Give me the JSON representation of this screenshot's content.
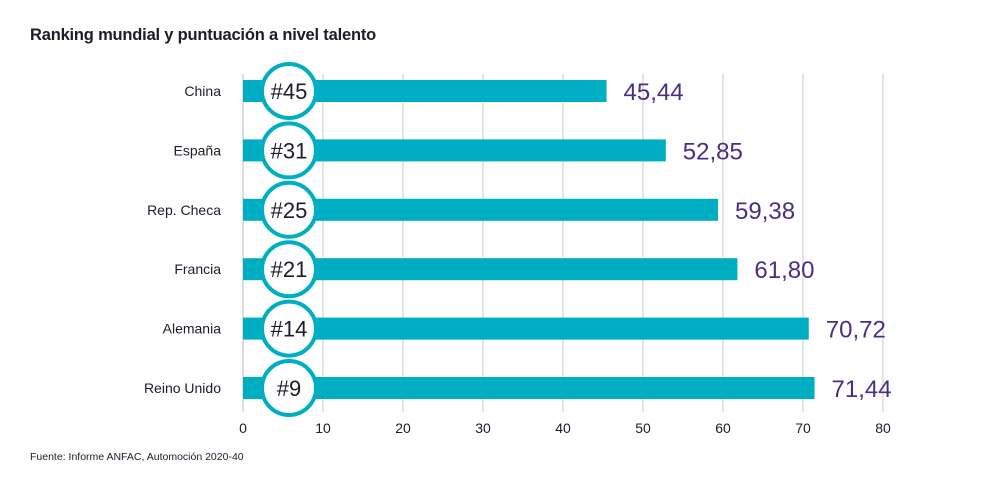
{
  "title": "Ranking mundial y puntuación a nivel talento",
  "source": "Fuente: Informe ANFAC, Automoción 2020-40",
  "colors": {
    "bar": "#00aec3",
    "value": "#4b2e83",
    "grid": "#c8c8c8",
    "text": "#1c1c2a"
  },
  "chart_data": {
    "type": "bar",
    "orientation": "horizontal",
    "title": "Ranking mundial y puntuación a nivel talento",
    "categories": [
      "China",
      "España",
      "Rep. Checa",
      "Francia",
      "Alemania",
      "Reino Unido"
    ],
    "values": [
      45.44,
      52.85,
      59.38,
      61.8,
      70.72,
      71.44
    ],
    "value_labels": [
      "45,44",
      "52,85",
      "59,38",
      "61,80",
      "70,72",
      "71,44"
    ],
    "rank_labels": [
      "#45",
      "#31",
      "#25",
      "#21",
      "#14",
      "#9"
    ],
    "xlim": [
      0,
      80
    ],
    "xticks": [
      0,
      10,
      20,
      30,
      40,
      50,
      60,
      70,
      80
    ],
    "grid": true,
    "xlabel": "",
    "ylabel": ""
  }
}
